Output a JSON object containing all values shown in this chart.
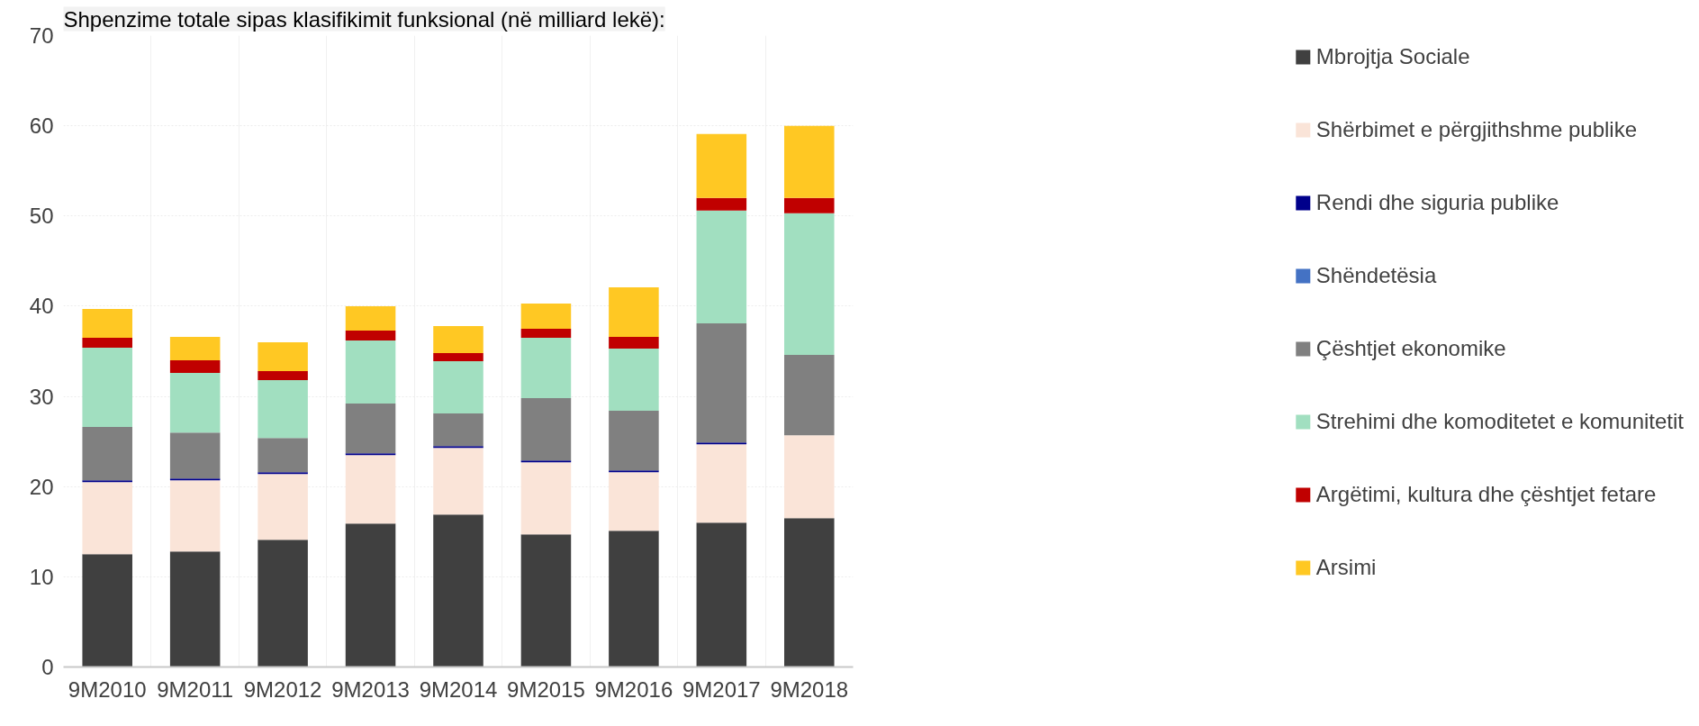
{
  "chart_data": {
    "type": "bar",
    "stacked": true,
    "title": "Shpenzime totale sipas klasifikimit funksional (në milliard lekë):",
    "categories": [
      "9M2010",
      "9M2011",
      "9M2012",
      "9M2013",
      "9M2014",
      "9M2015",
      "9M2016",
      "9M2017",
      "9M2018"
    ],
    "series": [
      {
        "name": "Mbrojtja Sociale",
        "color": "#404040",
        "values": [
          12.5,
          12.8,
          14.1,
          15.9,
          16.9,
          14.7,
          15.1,
          16.0,
          16.5
        ]
      },
      {
        "name": "Shërbimet e përgjithshme publike",
        "color": "#fae4d8",
        "values": [
          8.0,
          7.9,
          7.3,
          7.6,
          7.4,
          8.0,
          6.5,
          8.7,
          9.2
        ]
      },
      {
        "name": "Rendi dhe siguria publike",
        "color": "#00008b",
        "values": [
          0.2,
          0.2,
          0.2,
          0.2,
          0.2,
          0.2,
          0.2,
          0.2,
          0
        ]
      },
      {
        "name": "Shëndetësia",
        "color": "#4472c4",
        "values": [
          0,
          0,
          0,
          0,
          0,
          0,
          0,
          0,
          0
        ]
      },
      {
        "name": "Çështjet ekonomike",
        "color": "#808080",
        "values": [
          5.9,
          5.1,
          3.8,
          5.5,
          3.6,
          6.9,
          6.6,
          13.2,
          8.9
        ]
      },
      {
        "name": "Strehimi dhe komoditetet e komunitetit",
        "color": "#a1dfc0",
        "values": [
          8.8,
          6.6,
          6.4,
          7.0,
          5.8,
          6.7,
          6.9,
          12.5,
          15.7
        ]
      },
      {
        "name": "Argëtimi, kultura dhe çështjet fetare",
        "color": "#c00000",
        "values": [
          1.1,
          1.4,
          1.0,
          1.1,
          0.9,
          1.0,
          1.3,
          1.4,
          1.7
        ]
      },
      {
        "name": "Arsimi",
        "color": "#ffc823",
        "values": [
          3.2,
          2.6,
          3.2,
          2.7,
          3.0,
          2.8,
          5.5,
          7.1,
          8.0
        ]
      }
    ],
    "ylim": [
      0,
      70
    ],
    "yticks": [
      0,
      10,
      20,
      30,
      40,
      50,
      60,
      70
    ],
    "grid": true,
    "legend": "right"
  }
}
